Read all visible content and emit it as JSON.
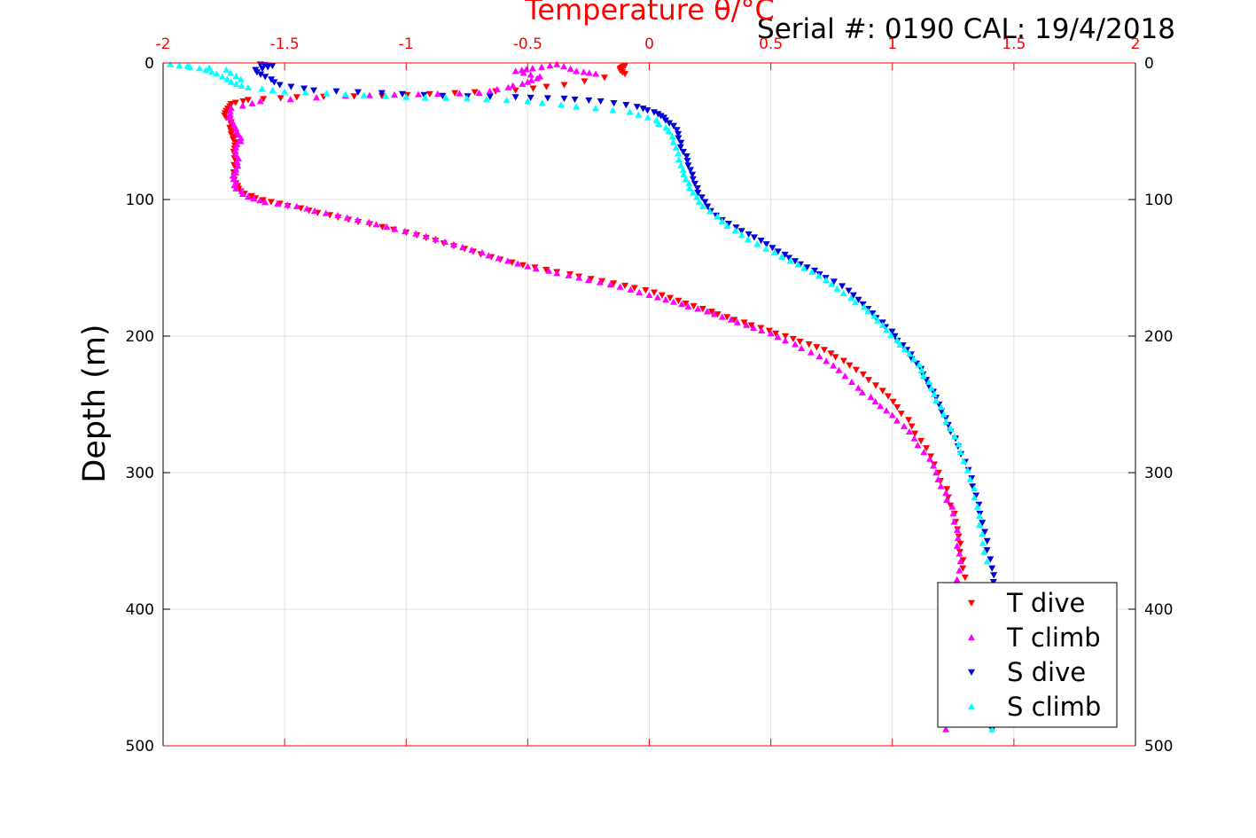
{
  "header": {
    "serial": "Serial #: 0190  CAL: 19/4/2018"
  },
  "colors": {
    "t_dive": "#ff0000",
    "t_climb": "#ff00ff",
    "s_dive": "#0000dd",
    "s_climb": "#00ffff",
    "top_axis": "#ff0000",
    "grid": "#e0e0e0"
  },
  "chart_data": {
    "type": "scatter",
    "title": "",
    "xlabel": "Temperature θ/°C",
    "ylabel": "Depth (m)",
    "xlim": [
      -2,
      2
    ],
    "ylim": [
      0,
      500
    ],
    "y_reversed": true,
    "grid": true,
    "x_ticks": [
      "-2",
      "-1.5",
      "-1",
      "-0.5",
      "0",
      "0.5",
      "1",
      "1.5",
      "2"
    ],
    "y_ticks": [
      "0",
      "100",
      "200",
      "300",
      "400",
      "500"
    ],
    "legend_position": "bottom-right",
    "series": [
      {
        "name": "T dive",
        "marker": "triangle-down",
        "color": "#ff0000",
        "points": [
          [
            -0.1,
            2
          ],
          [
            -0.12,
            4
          ],
          [
            -0.1,
            8
          ],
          [
            -0.35,
            16
          ],
          [
            -0.55,
            20
          ],
          [
            -0.8,
            22
          ],
          [
            -1.1,
            24
          ],
          [
            -1.45,
            25
          ],
          [
            -1.65,
            27
          ],
          [
            -1.72,
            30
          ],
          [
            -1.74,
            35
          ],
          [
            -1.74,
            40
          ],
          [
            -1.72,
            45
          ],
          [
            -1.72,
            52
          ],
          [
            -1.7,
            58
          ],
          [
            -1.71,
            65
          ],
          [
            -1.7,
            72
          ],
          [
            -1.71,
            80
          ],
          [
            -1.7,
            88
          ],
          [
            -1.68,
            94
          ],
          [
            -1.62,
            99
          ],
          [
            -1.52,
            103
          ],
          [
            -1.4,
            108
          ],
          [
            -1.28,
            113
          ],
          [
            -1.15,
            118
          ],
          [
            -1.0,
            124
          ],
          [
            -0.88,
            130
          ],
          [
            -0.76,
            136
          ],
          [
            -0.65,
            142
          ],
          [
            -0.52,
            148
          ],
          [
            -0.38,
            153
          ],
          [
            -0.24,
            158
          ],
          [
            -0.1,
            163
          ],
          [
            0.02,
            168
          ],
          [
            0.12,
            174
          ],
          [
            0.22,
            180
          ],
          [
            0.32,
            186
          ],
          [
            0.42,
            192
          ],
          [
            0.52,
            198
          ],
          [
            0.62,
            204
          ],
          [
            0.72,
            210
          ],
          [
            0.8,
            218
          ],
          [
            0.88,
            228
          ],
          [
            0.96,
            240
          ],
          [
            1.02,
            252
          ],
          [
            1.08,
            266
          ],
          [
            1.14,
            282
          ],
          [
            1.19,
            300
          ],
          [
            1.23,
            318
          ],
          [
            1.26,
            336
          ],
          [
            1.28,
            352
          ],
          [
            1.29,
            370
          ],
          [
            1.3,
            390
          ]
        ]
      },
      {
        "name": "T climb",
        "marker": "triangle-up",
        "color": "#ff00ff",
        "points": [
          [
            1.22,
            488
          ],
          [
            1.27,
            385
          ],
          [
            1.28,
            365
          ],
          [
            1.27,
            348
          ],
          [
            1.25,
            330
          ],
          [
            1.22,
            315
          ],
          [
            1.18,
            300
          ],
          [
            1.13,
            285
          ],
          [
            1.07,
            270
          ],
          [
            1.0,
            258
          ],
          [
            0.93,
            248
          ],
          [
            0.86,
            238
          ],
          [
            0.78,
            225
          ],
          [
            0.7,
            215
          ],
          [
            0.6,
            206
          ],
          [
            0.5,
            198
          ],
          [
            0.4,
            192
          ],
          [
            0.3,
            186
          ],
          [
            0.2,
            180
          ],
          [
            0.1,
            175
          ],
          [
            0.0,
            170
          ],
          [
            -0.12,
            164
          ],
          [
            -0.25,
            159
          ],
          [
            -0.38,
            154
          ],
          [
            -0.5,
            149
          ],
          [
            -0.62,
            143
          ],
          [
            -0.73,
            137
          ],
          [
            -0.84,
            131
          ],
          [
            -0.96,
            125
          ],
          [
            -1.08,
            120
          ],
          [
            -1.2,
            115
          ],
          [
            -1.33,
            110
          ],
          [
            -1.45,
            105
          ],
          [
            -1.58,
            102
          ],
          [
            -1.65,
            98
          ],
          [
            -1.7,
            92
          ],
          [
            -1.71,
            85
          ],
          [
            -1.7,
            78
          ],
          [
            -1.69,
            70
          ],
          [
            -1.7,
            62
          ],
          [
            -1.68,
            55
          ],
          [
            -1.7,
            48
          ],
          [
            -1.73,
            40
          ],
          [
            -1.72,
            33
          ],
          [
            -1.6,
            28
          ],
          [
            -1.25,
            24
          ],
          [
            -0.95,
            23
          ],
          [
            -0.7,
            22
          ],
          [
            -0.58,
            18
          ],
          [
            -0.5,
            14
          ],
          [
            -0.45,
            10
          ],
          [
            -0.55,
            6
          ],
          [
            -0.48,
            4
          ],
          [
            -0.38,
            1
          ],
          [
            -0.3,
            6
          ],
          [
            -0.22,
            8
          ]
        ]
      },
      {
        "name": "S dive",
        "marker": "triangle-down",
        "color": "#0000dd",
        "points": [
          [
            -1.6,
            1
          ],
          [
            -1.55,
            2
          ],
          [
            -1.62,
            5
          ],
          [
            -1.58,
            10
          ],
          [
            -1.52,
            16
          ],
          [
            -1.38,
            20
          ],
          [
            -1.1,
            22
          ],
          [
            -0.85,
            24
          ],
          [
            -0.55,
            25
          ],
          [
            -0.35,
            26
          ],
          [
            -0.2,
            28
          ],
          [
            -0.05,
            32
          ],
          [
            0.02,
            36
          ],
          [
            0.06,
            40
          ],
          [
            0.1,
            46
          ],
          [
            0.12,
            55
          ],
          [
            0.14,
            65
          ],
          [
            0.16,
            75
          ],
          [
            0.18,
            85
          ],
          [
            0.2,
            95
          ],
          [
            0.24,
            105
          ],
          [
            0.3,
            115
          ],
          [
            0.38,
            123
          ],
          [
            0.46,
            130
          ],
          [
            0.53,
            138
          ],
          [
            0.6,
            145
          ],
          [
            0.68,
            152
          ],
          [
            0.76,
            160
          ],
          [
            0.84,
            170
          ],
          [
            0.9,
            180
          ],
          [
            0.96,
            190
          ],
          [
            1.01,
            200
          ],
          [
            1.06,
            210
          ],
          [
            1.1,
            220
          ],
          [
            1.14,
            232
          ],
          [
            1.18,
            245
          ],
          [
            1.22,
            260
          ],
          [
            1.26,
            275
          ],
          [
            1.3,
            292
          ],
          [
            1.33,
            310
          ],
          [
            1.36,
            330
          ],
          [
            1.39,
            350
          ],
          [
            1.41,
            370
          ],
          [
            1.42,
            385
          ],
          [
            1.41,
            488
          ]
        ]
      },
      {
        "name": "S climb",
        "marker": "triangle-up",
        "color": "#00ffff",
        "points": [
          [
            1.41,
            488
          ],
          [
            1.39,
            365
          ],
          [
            1.37,
            345
          ],
          [
            1.35,
            325
          ],
          [
            1.32,
            305
          ],
          [
            1.28,
            285
          ],
          [
            1.24,
            268
          ],
          [
            1.2,
            252
          ],
          [
            1.16,
            238
          ],
          [
            1.12,
            225
          ],
          [
            1.07,
            213
          ],
          [
            1.02,
            203
          ],
          [
            0.96,
            192
          ],
          [
            0.9,
            182
          ],
          [
            0.83,
            172
          ],
          [
            0.75,
            162
          ],
          [
            0.67,
            153
          ],
          [
            0.58,
            145
          ],
          [
            0.48,
            136
          ],
          [
            0.38,
            126
          ],
          [
            0.3,
            116
          ],
          [
            0.22,
            105
          ],
          [
            0.18,
            95
          ],
          [
            0.15,
            85
          ],
          [
            0.13,
            75
          ],
          [
            0.11,
            62
          ],
          [
            0.08,
            50
          ],
          [
            0.03,
            42
          ],
          [
            -0.08,
            36
          ],
          [
            -0.3,
            32
          ],
          [
            -0.5,
            28
          ],
          [
            -0.75,
            26
          ],
          [
            -1.0,
            25
          ],
          [
            -1.25,
            23
          ],
          [
            -1.5,
            21
          ],
          [
            -1.65,
            18
          ],
          [
            -1.72,
            14
          ],
          [
            -1.78,
            8
          ],
          [
            -1.85,
            4
          ],
          [
            -1.97,
            1
          ],
          [
            -1.74,
            5
          ],
          [
            -1.68,
            12
          ]
        ]
      }
    ]
  }
}
